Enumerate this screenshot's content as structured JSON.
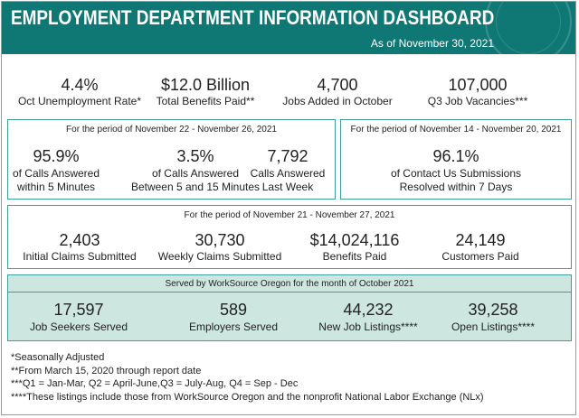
{
  "header": {
    "title": "EMPLOYMENT DEPARTMENT INFORMATION DASHBOARD",
    "date": "As of November 30, 2021"
  },
  "top_stats": [
    {
      "value": "4.4%",
      "label": "Oct Unemployment Rate*"
    },
    {
      "value": "$12.0 Billion",
      "label": "Total Benefits Paid**"
    },
    {
      "value": "4,700",
      "label": "Jobs Added in October"
    },
    {
      "value": "107,000",
      "label": "Q3 Job Vacancies***"
    }
  ],
  "calls": {
    "period": "For the period of November 22 - November 26, 2021",
    "stats": [
      {
        "value": "95.9%",
        "label": [
          "of Calls Answered",
          "within 5 Minutes"
        ]
      },
      {
        "value": "3.5%",
        "label": [
          "of Calls Answered",
          "Between 5 and 15 Minutes"
        ]
      },
      {
        "value": "7,792",
        "label": [
          "Calls Answered",
          "Last Week"
        ]
      }
    ]
  },
  "contact": {
    "period": "For the period of November 14 - November 20, 2021",
    "stats": [
      {
        "value": "96.1%",
        "label": [
          "of Contact Us Submissions",
          "Resolved within 7 Days"
        ]
      }
    ]
  },
  "claims": {
    "period": "For the period of November 21 - November 27, 2021",
    "stats": [
      {
        "value": "2,403",
        "label": "Initial Claims Submitted"
      },
      {
        "value": "30,730",
        "label": "Weekly Claims Submitted"
      },
      {
        "value": "$14,024,116",
        "label": "Benefits Paid"
      },
      {
        "value": "24,149",
        "label": "Customers Paid"
      }
    ]
  },
  "worksource": {
    "period": "Served by WorkSource Oregon for the month of October 2021",
    "stats": [
      {
        "value": "17,597",
        "label": "Job Seekers Served"
      },
      {
        "value": "589",
        "label": "Employers Served"
      },
      {
        "value": "44,232",
        "label": "New Job Listings****"
      },
      {
        "value": "39,258",
        "label": "Open Listings****"
      }
    ]
  },
  "footnotes": [
    "*Seasonally Adjusted",
    "**From March 15, 2020 through report date",
    "***Q1 = Jan-Mar, Q2 = April-June,Q3 = July-Aug, Q4 = Sep - Dec",
    "****These listings include those from WorkSource Oregon and the nonprofit National Labor Exchange (NLx)"
  ]
}
